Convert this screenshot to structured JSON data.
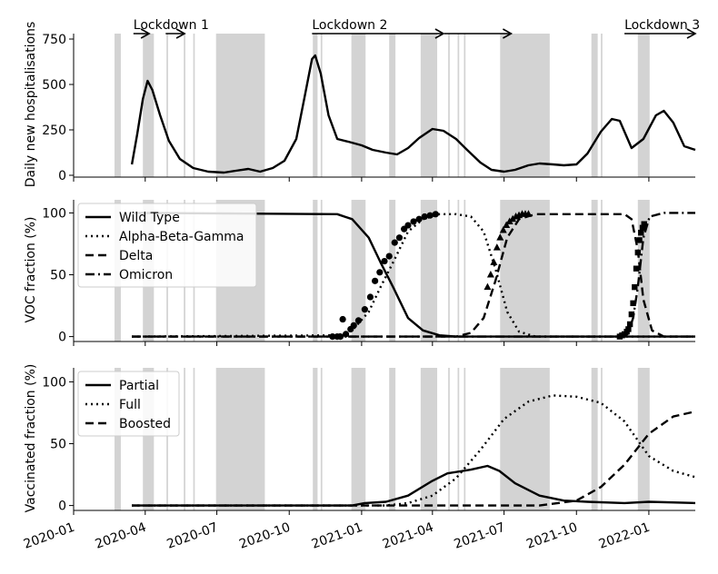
{
  "chart_data": [
    {
      "type": "line",
      "ylabel": "Daily new hospitalisations",
      "ylim": [
        0,
        780
      ],
      "yticks": [
        0,
        250,
        500,
        750
      ],
      "ytick_labels": [
        "0",
        "250",
        "500",
        "750"
      ],
      "annotations": [
        {
          "text": "Lockdown 1",
          "arrows": [
            [
              "2020-03-17",
              "2020-04-06"
            ],
            [
              "2020-04-27",
              "2020-05-21"
            ]
          ]
        },
        {
          "text": "Lockdown 2",
          "arrows": [
            [
              "2020-10-30",
              "2021-04-15"
            ],
            [
              "2021-04-16",
              "2021-07-10"
            ]
          ]
        },
        {
          "text": "Lockdown 3",
          "arrows": [
            [
              "2021-12-01",
              "2022-03-01"
            ]
          ]
        }
      ],
      "series": [
        {
          "values": [
            [
              "2020-03-15",
              60
            ],
            [
              "2020-03-22",
              230
            ],
            [
              "2020-03-29",
              420
            ],
            [
              "2020-04-04",
              520
            ],
            [
              "2020-04-10",
              470
            ],
            [
              "2020-04-20",
              330
            ],
            [
              "2020-05-01",
              190
            ],
            [
              "2020-05-15",
              90
            ],
            [
              "2020-06-01",
              40
            ],
            [
              "2020-06-20",
              20
            ],
            [
              "2020-07-10",
              15
            ],
            [
              "2020-07-25",
              25
            ],
            [
              "2020-08-10",
              35
            ],
            [
              "2020-08-25",
              20
            ],
            [
              "2020-09-10",
              40
            ],
            [
              "2020-09-25",
              80
            ],
            [
              "2020-10-10",
              200
            ],
            [
              "2020-10-20",
              420
            ],
            [
              "2020-10-30",
              640
            ],
            [
              "2020-11-03",
              660
            ],
            [
              "2020-11-10",
              560
            ],
            [
              "2020-11-20",
              330
            ],
            [
              "2020-12-01",
              200
            ],
            [
              "2020-12-15",
              185
            ],
            [
              "2021-01-01",
              165
            ],
            [
              "2021-01-15",
              140
            ],
            [
              "2021-02-01",
              125
            ],
            [
              "2021-02-15",
              115
            ],
            [
              "2021-03-01",
              150
            ],
            [
              "2021-03-15",
              205
            ],
            [
              "2021-04-01",
              255
            ],
            [
              "2021-04-15",
              245
            ],
            [
              "2021-05-01",
              200
            ],
            [
              "2021-05-15",
              140
            ],
            [
              "2021-06-01",
              70
            ],
            [
              "2021-06-15",
              30
            ],
            [
              "2021-07-01",
              20
            ],
            [
              "2021-07-15",
              30
            ],
            [
              "2021-08-01",
              55
            ],
            [
              "2021-08-15",
              65
            ],
            [
              "2021-09-01",
              60
            ],
            [
              "2021-09-15",
              55
            ],
            [
              "2021-10-01",
              60
            ],
            [
              "2021-10-15",
              120
            ],
            [
              "2021-11-01",
              240
            ],
            [
              "2021-11-15",
              310
            ],
            [
              "2021-11-25",
              300
            ],
            [
              "2021-12-10",
              150
            ],
            [
              "2021-12-25",
              200
            ],
            [
              "2022-01-10",
              330
            ],
            [
              "2022-01-20",
              355
            ],
            [
              "2022-02-01",
              290
            ],
            [
              "2022-02-15",
              160
            ],
            [
              "2022-03-01",
              140
            ]
          ]
        }
      ]
    },
    {
      "type": "line",
      "ylabel": "VOC fraction (%)",
      "ylim": [
        0,
        100
      ],
      "yticks": [
        0,
        50,
        100
      ],
      "ytick_labels": [
        "0",
        "50",
        "100"
      ],
      "legend": "upper-left",
      "series": [
        {
          "name": "Wild Type",
          "style": "solid",
          "values": [
            [
              "2020-03-15",
              100
            ],
            [
              "2020-12-01",
              99
            ],
            [
              "2020-12-20",
              95
            ],
            [
              "2021-01-10",
              80
            ],
            [
              "2021-01-25",
              60
            ],
            [
              "2021-02-10",
              40
            ],
            [
              "2021-03-01",
              15
            ],
            [
              "2021-03-20",
              5
            ],
            [
              "2021-04-10",
              1
            ],
            [
              "2021-05-01",
              0
            ],
            [
              "2022-03-01",
              0
            ]
          ]
        },
        {
          "name": "Alpha-Beta-Gamma",
          "style": "dotted",
          "values": [
            [
              "2020-03-15",
              0
            ],
            [
              "2020-12-01",
              1
            ],
            [
              "2020-12-20",
              5
            ],
            [
              "2021-01-10",
              20
            ],
            [
              "2021-01-25",
              40
            ],
            [
              "2021-02-10",
              60
            ],
            [
              "2021-03-01",
              85
            ],
            [
              "2021-03-20",
              95
            ],
            [
              "2021-04-10",
              99
            ],
            [
              "2021-05-01",
              99
            ],
            [
              "2021-05-20",
              97
            ],
            [
              "2021-06-05",
              85
            ],
            [
              "2021-06-20",
              55
            ],
            [
              "2021-07-05",
              20
            ],
            [
              "2021-07-20",
              4
            ],
            [
              "2021-08-10",
              0
            ],
            [
              "2022-03-01",
              0
            ]
          ]
        },
        {
          "name": "Delta",
          "style": "dashed",
          "values": [
            [
              "2020-03-15",
              0
            ],
            [
              "2021-05-01",
              0
            ],
            [
              "2021-05-20",
              3
            ],
            [
              "2021-06-05",
              15
            ],
            [
              "2021-06-20",
              45
            ],
            [
              "2021-07-05",
              80
            ],
            [
              "2021-07-20",
              95
            ],
            [
              "2021-08-10",
              99
            ],
            [
              "2021-12-01",
              99
            ],
            [
              "2021-12-10",
              95
            ],
            [
              "2021-12-18",
              70
            ],
            [
              "2021-12-25",
              30
            ],
            [
              "2022-01-05",
              5
            ],
            [
              "2022-01-20",
              0
            ],
            [
              "2022-03-01",
              0
            ]
          ]
        },
        {
          "name": "Omicron",
          "style": "dashdot",
          "values": [
            [
              "2020-03-15",
              0
            ],
            [
              "2021-11-25",
              0
            ],
            [
              "2021-12-05",
              2
            ],
            [
              "2021-12-12",
              15
            ],
            [
              "2021-12-18",
              40
            ],
            [
              "2021-12-25",
              80
            ],
            [
              "2022-01-02",
              97
            ],
            [
              "2022-01-20",
              100
            ],
            [
              "2022-03-01",
              100
            ]
          ]
        }
      ],
      "observed_points": [
        {
          "marker": "circle",
          "values": [
            [
              "2020-11-25",
              0
            ],
            [
              "2020-12-01",
              0
            ],
            [
              "2020-12-05",
              0
            ],
            [
              "2020-12-08",
              14
            ],
            [
              "2020-12-12",
              2
            ],
            [
              "2020-12-18",
              6
            ],
            [
              "2020-12-22",
              9
            ],
            [
              "2020-12-28",
              13
            ],
            [
              "2021-01-05",
              22
            ],
            [
              "2021-01-12",
              32
            ],
            [
              "2021-01-18",
              45
            ],
            [
              "2021-01-24",
              52
            ],
            [
              "2021-01-30",
              61
            ],
            [
              "2021-02-05",
              65
            ],
            [
              "2021-02-12",
              76
            ],
            [
              "2021-02-18",
              80
            ],
            [
              "2021-02-24",
              87
            ],
            [
              "2021-03-01",
              90
            ],
            [
              "2021-03-08",
              93
            ],
            [
              "2021-03-15",
              95
            ],
            [
              "2021-03-22",
              97
            ],
            [
              "2021-03-29",
              98
            ],
            [
              "2021-04-05",
              99
            ]
          ]
        },
        {
          "marker": "triangle",
          "values": [
            [
              "2021-06-10",
              40
            ],
            [
              "2021-06-14",
              50
            ],
            [
              "2021-06-18",
              60
            ],
            [
              "2021-06-22",
              72
            ],
            [
              "2021-06-26",
              80
            ],
            [
              "2021-06-30",
              86
            ],
            [
              "2021-07-04",
              90
            ],
            [
              "2021-07-08",
              93
            ],
            [
              "2021-07-12",
              95
            ],
            [
              "2021-07-16",
              97
            ],
            [
              "2021-07-20",
              98
            ],
            [
              "2021-07-24",
              99
            ],
            [
              "2021-07-28",
              99
            ],
            [
              "2021-08-01",
              99
            ]
          ]
        },
        {
          "marker": "square",
          "values": [
            [
              "2021-11-25",
              0
            ],
            [
              "2021-11-28",
              1
            ],
            [
              "2021-12-01",
              2
            ],
            [
              "2021-12-04",
              4
            ],
            [
              "2021-12-06",
              6
            ],
            [
              "2021-12-08",
              10
            ],
            [
              "2021-12-10",
              18
            ],
            [
              "2021-12-12",
              27
            ],
            [
              "2021-12-14",
              40
            ],
            [
              "2021-12-16",
              55
            ],
            [
              "2021-12-18",
              68
            ],
            [
              "2021-12-20",
              78
            ],
            [
              "2021-12-22",
              84
            ],
            [
              "2021-12-24",
              88
            ],
            [
              "2021-12-26",
              91
            ]
          ]
        }
      ]
    },
    {
      "type": "line",
      "ylabel": "Vaccinated fraction (%)",
      "ylim": [
        0,
        100
      ],
      "yticks": [
        0,
        50,
        100
      ],
      "ytick_labels": [
        "0",
        "50",
        "100"
      ],
      "legend": "upper-left",
      "series": [
        {
          "name": "Partial",
          "style": "solid",
          "values": [
            [
              "2020-03-15",
              0
            ],
            [
              "2020-12-20",
              0
            ],
            [
              "2021-01-05",
              2
            ],
            [
              "2021-02-01",
              3
            ],
            [
              "2021-03-01",
              8
            ],
            [
              "2021-04-01",
              20
            ],
            [
              "2021-04-20",
              26
            ],
            [
              "2021-05-20",
              29
            ],
            [
              "2021-06-10",
              32
            ],
            [
              "2021-06-25",
              28
            ],
            [
              "2021-07-15",
              18
            ],
            [
              "2021-08-15",
              8
            ],
            [
              "2021-09-15",
              4
            ],
            [
              "2021-10-15",
              3
            ],
            [
              "2021-12-01",
              2
            ],
            [
              "2022-01-01",
              3
            ],
            [
              "2022-03-01",
              2
            ]
          ]
        },
        {
          "name": "Full",
          "style": "dotted",
          "values": [
            [
              "2020-03-15",
              0
            ],
            [
              "2021-02-01",
              0
            ],
            [
              "2021-03-01",
              2
            ],
            [
              "2021-04-01",
              8
            ],
            [
              "2021-05-01",
              22
            ],
            [
              "2021-06-01",
              45
            ],
            [
              "2021-07-01",
              70
            ],
            [
              "2021-08-01",
              84
            ],
            [
              "2021-09-01",
              89
            ],
            [
              "2021-10-01",
              88
            ],
            [
              "2021-11-01",
              83
            ],
            [
              "2021-12-01",
              68
            ],
            [
              "2022-01-01",
              40
            ],
            [
              "2022-02-01",
              28
            ],
            [
              "2022-03-01",
              23
            ]
          ]
        },
        {
          "name": "Boosted",
          "style": "dashed",
          "values": [
            [
              "2020-03-15",
              0
            ],
            [
              "2021-08-15",
              0
            ],
            [
              "2021-10-01",
              4
            ],
            [
              "2021-11-01",
              15
            ],
            [
              "2021-12-01",
              33
            ],
            [
              "2022-01-01",
              58
            ],
            [
              "2022-02-01",
              72
            ],
            [
              "2022-03-01",
              76
            ]
          ]
        }
      ]
    }
  ],
  "x_axis": {
    "start": "2020-01-01",
    "end": "2022-03-01",
    "ticks": [
      "2020-01-01",
      "2020-04-01",
      "2020-07-01",
      "2020-10-01",
      "2021-01-01",
      "2021-04-01",
      "2021-07-01",
      "2021-10-01",
      "2022-01-01"
    ],
    "tick_labels": [
      "2020-01",
      "2020-04",
      "2020-07",
      "2020-10",
      "2021-01",
      "2021-04",
      "2021-07",
      "2021-10",
      "2022-01"
    ]
  },
  "shaded_periods": [
    [
      "2020-02-22",
      "2020-03-01"
    ],
    [
      "2020-03-29",
      "2020-04-12"
    ],
    [
      "2020-04-28",
      "2020-04-30"
    ],
    [
      "2020-05-20",
      "2020-05-22"
    ],
    [
      "2020-06-01",
      "2020-06-03"
    ],
    [
      "2020-06-30",
      "2020-08-31"
    ],
    [
      "2020-10-31",
      "2020-11-06"
    ],
    [
      "2020-11-10",
      "2020-11-12"
    ],
    [
      "2020-12-19",
      "2021-01-06"
    ],
    [
      "2021-02-05",
      "2021-02-13"
    ],
    [
      "2021-03-17",
      "2021-04-07"
    ],
    [
      "2021-04-21",
      "2021-04-23"
    ],
    [
      "2021-05-03",
      "2021-05-05"
    ],
    [
      "2021-05-11",
      "2021-05-13"
    ],
    [
      "2021-06-26",
      "2021-08-28"
    ],
    [
      "2021-10-20",
      "2021-10-28"
    ],
    [
      "2021-11-01",
      "2021-11-03"
    ],
    [
      "2021-12-18",
      "2022-01-02"
    ]
  ]
}
